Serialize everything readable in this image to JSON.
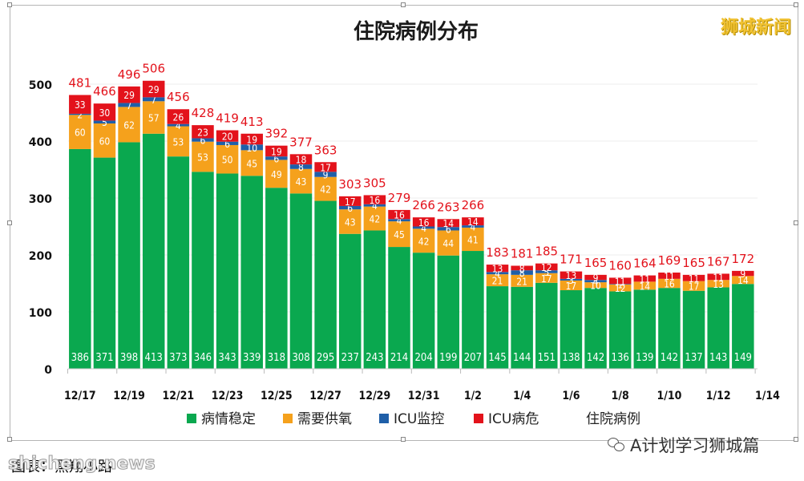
{
  "brand": "狮城新闻",
  "footer_note": "图表：黑翔小路",
  "watermark": "shicheng.news",
  "wechat_label": "A计划学习狮城篇",
  "chart_data": {
    "type": "bar",
    "stacked": true,
    "title": "住院病例分布",
    "ylim": [
      0,
      500
    ],
    "yticks": [
      0,
      100,
      200,
      300,
      400,
      500
    ],
    "categories": [
      "12/17",
      "12/18",
      "12/19",
      "12/20",
      "12/21",
      "12/22",
      "12/23",
      "12/24",
      "12/25",
      "12/26",
      "12/27",
      "12/28",
      "12/29",
      "12/30",
      "12/31",
      "1/1",
      "1/2",
      "1/3",
      "1/4",
      "1/5",
      "1/6",
      "1/7",
      "1/8",
      "1/9",
      "1/10",
      "1/11",
      "1/12",
      "1/13"
    ],
    "xtick_labels": [
      "12/17",
      "12/19",
      "12/21",
      "12/23",
      "12/25",
      "12/27",
      "12/29",
      "12/31",
      "1/2",
      "1/4",
      "1/6",
      "1/8",
      "1/10",
      "1/12",
      "1/14"
    ],
    "series": [
      {
        "name": "病情稳定",
        "color": "#0aa84f",
        "values": [
          386,
          371,
          398,
          413,
          373,
          346,
          343,
          339,
          318,
          308,
          295,
          237,
          243,
          214,
          204,
          199,
          207,
          145,
          144,
          151,
          138,
          142,
          136,
          139,
          142,
          137,
          143,
          149
        ]
      },
      {
        "name": "需要供氧",
        "color": "#f5a11c",
        "values": [
          60,
          60,
          62,
          57,
          53,
          53,
          50,
          45,
          49,
          43,
          42,
          43,
          42,
          45,
          42,
          44,
          41,
          21,
          21,
          17,
          17,
          10,
          12,
          14,
          16,
          17,
          13,
          14
        ]
      },
      {
        "name": "ICU监控",
        "color": "#1f5fa8",
        "values": [
          2,
          5,
          7,
          7,
          4,
          6,
          6,
          10,
          6,
          8,
          9,
          6,
          4,
          4,
          4,
          6,
          4,
          4,
          8,
          5,
          3,
          4,
          1,
          0,
          0,
          0,
          0,
          0
        ]
      },
      {
        "name": "ICU病危",
        "color": "#e3121b",
        "values": [
          33,
          30,
          29,
          29,
          26,
          23,
          20,
          19,
          19,
          18,
          17,
          17,
          16,
          16,
          16,
          14,
          14,
          13,
          8,
          12,
          13,
          9,
          11,
          11,
          11,
          11,
          11,
          9
        ]
      }
    ],
    "labels": {
      "stable": [
        "386",
        "371",
        "398",
        "413",
        "373",
        "346",
        "343",
        "339",
        "318",
        "308",
        "295",
        "237",
        "243",
        "214",
        "204",
        "199",
        "207",
        "145",
        "144",
        "151",
        "138",
        "142",
        "136",
        "139",
        "142",
        "137",
        "143",
        "149"
      ],
      "oxygen": [
        "60",
        "60",
        "62",
        "57",
        "53",
        "53",
        "50",
        "45",
        "49",
        "43",
        "42",
        "43",
        "42",
        "45",
        "42",
        "44",
        "41",
        "21",
        "21",
        "17",
        "17",
        "10",
        "12",
        "14",
        "16",
        "17",
        "13",
        "14"
      ],
      "icu_mon": [
        "2",
        "5",
        "7",
        "7",
        "4",
        "6",
        "6",
        "10",
        "6",
        "8",
        "9",
        "6",
        "4",
        "4",
        "4",
        "6",
        "4",
        "4",
        "8",
        "5",
        "3",
        "4",
        "1",
        "",
        "",
        "",
        "",
        ""
      ],
      "icu_crit": [
        "33",
        "30",
        "29",
        "29",
        "26",
        "23",
        "20",
        "19",
        "19",
        "18",
        "17",
        "17",
        "16",
        "16",
        "16",
        "14",
        "14",
        "13",
        "8",
        "12",
        "13",
        "9",
        "11",
        "11",
        "11",
        "11",
        "11",
        "9"
      ]
    },
    "totals_series": {
      "name": "住院病例",
      "values": [
        481,
        466,
        496,
        506,
        456,
        428,
        419,
        413,
        392,
        377,
        363,
        303,
        305,
        279,
        266,
        263,
        266,
        183,
        181,
        185,
        171,
        165,
        160,
        164,
        169,
        165,
        167,
        172
      ]
    },
    "legend": [
      "病情稳定",
      "需要供氧",
      "ICU监控",
      "ICU病危",
      "住院病例"
    ],
    "legend_position": "bottom",
    "grid": true,
    "total_label_color": "#e3121b"
  }
}
